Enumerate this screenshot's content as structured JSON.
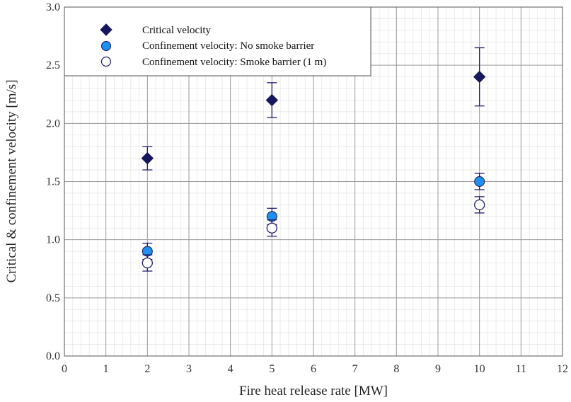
{
  "chart_data": {
    "type": "scatter",
    "title": "",
    "xlabel": "Fire heat release rate [MW]",
    "ylabel": "Critical & confinement velocity [m/s]",
    "xlim": [
      0,
      12
    ],
    "ylim": [
      0,
      3.0
    ],
    "x_ticks": [
      "0",
      "1",
      "2",
      "3",
      "4",
      "5",
      "6",
      "7",
      "8",
      "9",
      "10",
      "11",
      "12"
    ],
    "y_ticks": [
      "0.0",
      "0.5",
      "1.0",
      "1.5",
      "2.0",
      "2.5",
      "3.0"
    ],
    "grid": true,
    "legend_position": "top-left",
    "series": [
      {
        "name": "Critical velocity",
        "marker": "diamond-filled",
        "color": "#16165e",
        "points": [
          {
            "x": 2,
            "y": 1.7,
            "err_low": 1.6,
            "err_high": 1.8
          },
          {
            "x": 5,
            "y": 2.2,
            "err_low": 2.05,
            "err_high": 2.35
          },
          {
            "x": 10,
            "y": 2.4,
            "err_low": 2.15,
            "err_high": 2.65
          }
        ]
      },
      {
        "name": "Confinement velocity: No smoke barrier",
        "marker": "circle-filled",
        "color": "#1f8ff0",
        "points": [
          {
            "x": 2,
            "y": 0.9,
            "err_low": 0.83,
            "err_high": 0.97
          },
          {
            "x": 5,
            "y": 1.2,
            "err_low": 1.13,
            "err_high": 1.27
          },
          {
            "x": 10,
            "y": 1.5,
            "err_low": 1.43,
            "err_high": 1.57
          }
        ]
      },
      {
        "name": "Confinement velocity: Smoke barrier (1 m)",
        "marker": "circle-open",
        "color": "#1e1e6e",
        "points": [
          {
            "x": 2,
            "y": 0.8,
            "err_low": 0.73,
            "err_high": 0.87
          },
          {
            "x": 5,
            "y": 1.1,
            "err_low": 1.03,
            "err_high": 1.17
          },
          {
            "x": 10,
            "y": 1.3,
            "err_low": 1.23,
            "err_high": 1.37
          }
        ]
      }
    ]
  }
}
